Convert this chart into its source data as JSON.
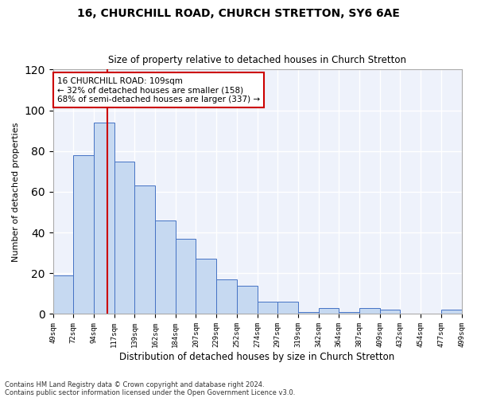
{
  "title1": "16, CHURCHILL ROAD, CHURCH STRETTON, SY6 6AE",
  "title2": "Size of property relative to detached houses in Church Stretton",
  "xlabel": "Distribution of detached houses by size in Church Stretton",
  "ylabel": "Number of detached properties",
  "xlabels": [
    "49sqm",
    "72sqm",
    "94sqm",
    "117sqm",
    "139sqm",
    "162sqm",
    "184sqm",
    "207sqm",
    "229sqm",
    "252sqm",
    "274sqm",
    "297sqm",
    "319sqm",
    "342sqm",
    "364sqm",
    "387sqm",
    "409sqm",
    "432sqm",
    "454sqm",
    "477sqm",
    "499sqm"
  ],
  "bin_heights": [
    19,
    78,
    94,
    75,
    63,
    46,
    37,
    27,
    17,
    14,
    6,
    6,
    1,
    3,
    1,
    3,
    2,
    0,
    0,
    2
  ],
  "bin_edges_num": [
    49,
    72,
    94,
    117,
    139,
    162,
    184,
    207,
    229,
    252,
    274,
    297,
    319,
    342,
    364,
    387,
    409,
    432,
    454,
    477,
    499
  ],
  "bar_color": "#c6d9f1",
  "bar_edge_color": "#4472c4",
  "bg_color": "#eef2fb",
  "grid_color": "#ffffff",
  "annotation_box_color": "#ffffff",
  "annotation_box_edge": "#cc0000",
  "vline_color": "#cc0000",
  "property_sqm": 109,
  "property_label": "16 CHURCHILL ROAD: 109sqm",
  "smaller_pct": 32,
  "smaller_count": 158,
  "larger_pct": 68,
  "larger_count": 337,
  "ylim": [
    0,
    120
  ],
  "yticks": [
    0,
    20,
    40,
    60,
    80,
    100,
    120
  ],
  "footnote1": "Contains HM Land Registry data © Crown copyright and database right 2024.",
  "footnote2": "Contains public sector information licensed under the Open Government Licence v3.0."
}
